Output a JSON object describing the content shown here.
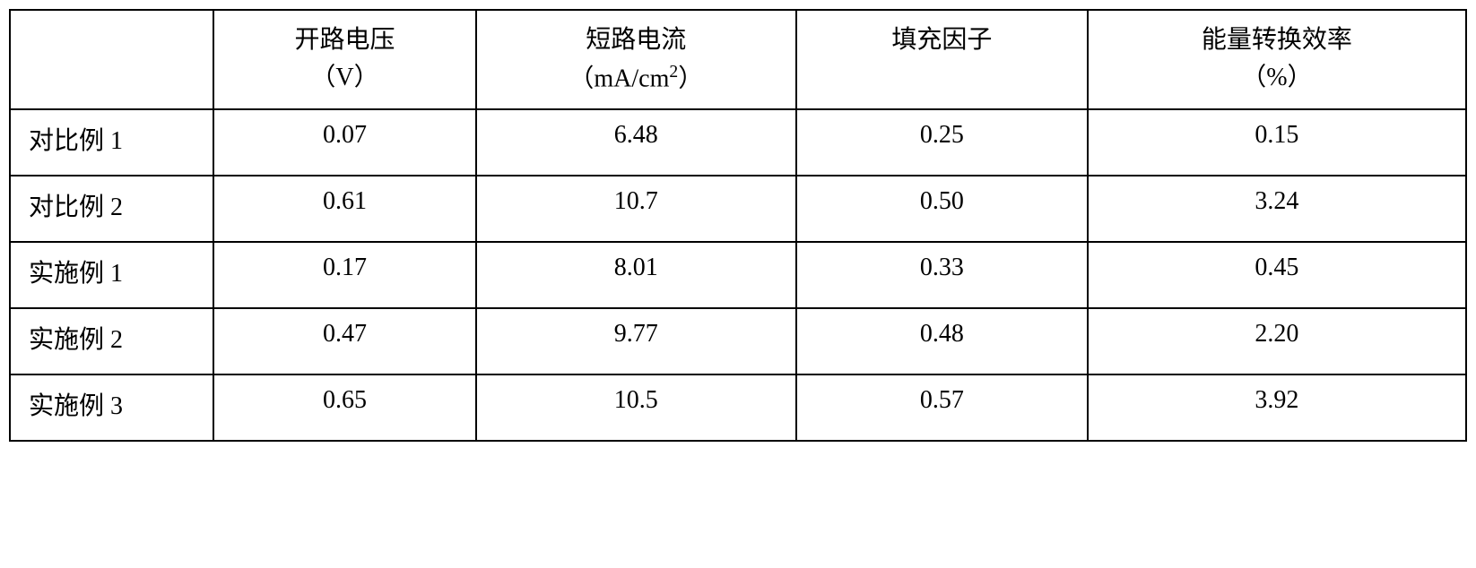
{
  "table": {
    "columns": [
      {
        "label": "",
        "unit": ""
      },
      {
        "label": "开路电压",
        "unit": "（V）"
      },
      {
        "label": "短路电流",
        "unit": "（mA/cm²）"
      },
      {
        "label": "填充因子",
        "unit": ""
      },
      {
        "label": "能量转换效率",
        "unit": "（%）"
      }
    ],
    "rows": [
      {
        "label": "对比例 1",
        "values": [
          "0.07",
          "6.48",
          "0.25",
          "0.15"
        ]
      },
      {
        "label": "对比例 2",
        "values": [
          "0.61",
          "10.7",
          "0.50",
          "3.24"
        ]
      },
      {
        "label": "实施例 1",
        "values": [
          "0.17",
          "8.01",
          "0.33",
          "0.45"
        ]
      },
      {
        "label": "实施例 2",
        "values": [
          "0.47",
          "9.77",
          "0.48",
          "2.20"
        ]
      },
      {
        "label": "实施例 3",
        "values": [
          "0.65",
          "10.5",
          "0.57",
          "3.92"
        ]
      }
    ],
    "column_widths": [
      "14%",
      "18%",
      "22%",
      "20%",
      "26%"
    ],
    "border_color": "#000000",
    "background_color": "#ffffff",
    "font_size": 28,
    "font_family": "SimSun"
  }
}
